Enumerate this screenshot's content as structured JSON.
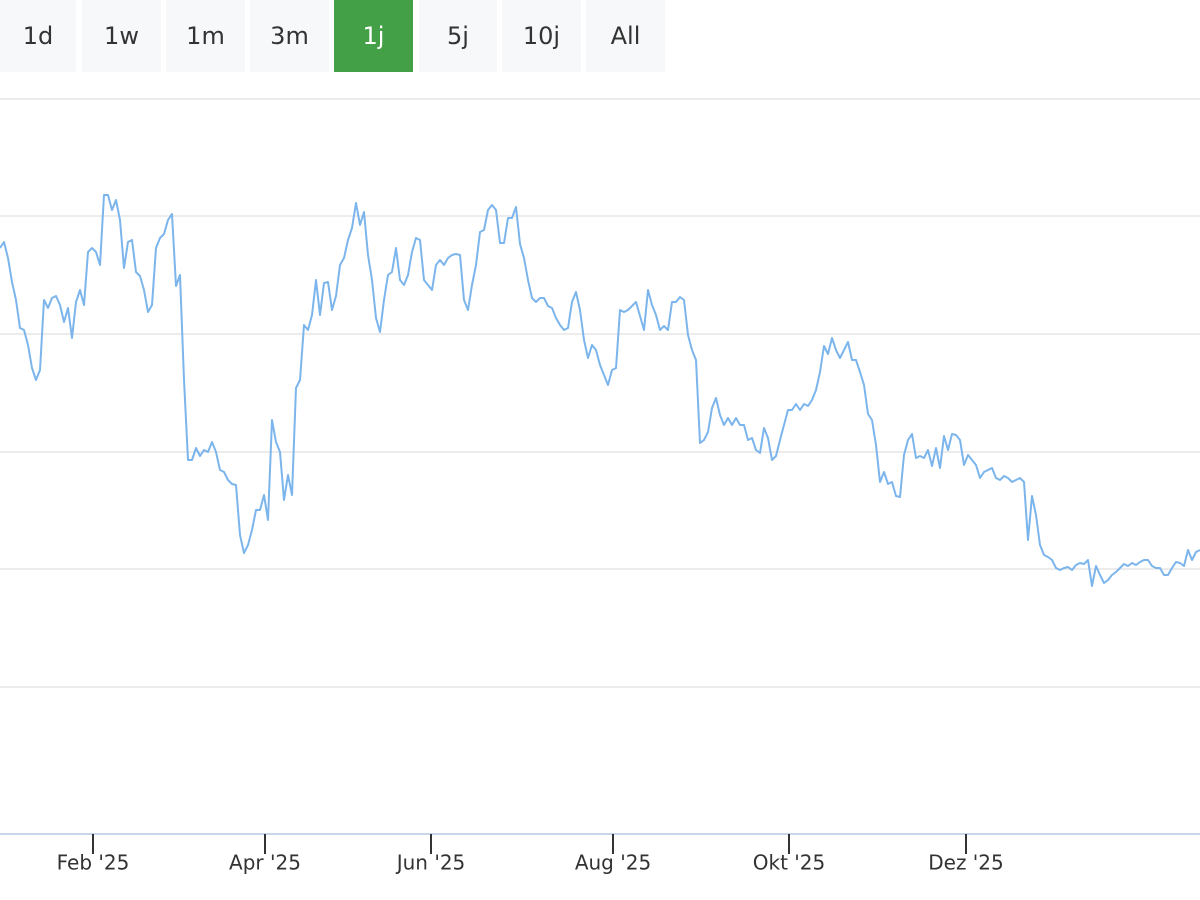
{
  "range_buttons": [
    {
      "label": "1d"
    },
    {
      "label": "1w"
    },
    {
      "label": "1m"
    },
    {
      "label": "3m"
    },
    {
      "label": "1j",
      "active": true
    },
    {
      "label": "5j"
    },
    {
      "label": "10j"
    },
    {
      "label": "All"
    }
  ],
  "chart_data": {
    "type": "line",
    "color": "#7cb5ec",
    "grid": true,
    "xlim": [
      0,
      300
    ],
    "xticks": [
      {
        "value": 23.25,
        "label": "Feb '25"
      },
      {
        "value": 66.25,
        "label": "Apr '25"
      },
      {
        "value": 107.75,
        "label": "Jun '25"
      },
      {
        "value": 153.25,
        "label": "Aug '25"
      },
      {
        "value": 197.25,
        "label": "Okt '25"
      },
      {
        "value": 241.5,
        "label": "Dez '25"
      }
    ],
    "ylim": [
      0,
      735
    ],
    "yticks": [
      147,
      265,
      382,
      500,
      618,
      735
    ],
    "values": [
      586,
      592,
      576,
      552,
      534,
      506,
      504,
      489,
      466,
      454,
      464,
      534,
      526,
      536,
      538,
      529,
      512,
      526,
      496,
      532,
      544,
      529,
      582,
      586,
      582,
      569,
      639,
      639,
      624,
      634,
      614,
      566,
      592,
      594,
      562,
      558,
      544,
      522,
      529,
      586,
      596,
      600,
      614,
      620,
      548,
      559,
      454,
      374,
      374,
      386,
      378,
      384,
      382,
      392,
      382,
      364,
      362,
      354,
      350,
      349,
      299,
      281,
      289,
      304,
      324,
      324,
      339,
      314,
      414,
      392,
      382,
      334,
      359,
      339,
      446,
      454,
      509,
      504,
      519,
      554,
      519,
      551,
      552,
      524,
      538,
      569,
      576,
      594,
      606,
      631,
      609,
      622,
      579,
      554,
      516,
      502,
      534,
      559,
      562,
      586,
      554,
      549,
      559,
      582,
      596,
      594,
      554,
      549,
      544,
      569,
      574,
      569,
      576,
      579,
      580,
      579,
      534,
      524,
      549,
      569,
      602,
      604,
      624,
      629,
      624,
      591,
      591,
      616,
      616,
      627,
      590,
      576,
      554,
      536,
      532,
      536,
      536,
      528,
      526,
      516,
      509,
      504,
      506,
      532,
      542,
      524,
      494,
      476,
      489,
      484,
      469,
      459,
      449,
      464,
      466,
      524,
      522,
      524,
      528,
      532,
      518,
      504,
      544,
      529,
      519,
      504,
      508,
      504,
      532,
      532,
      537,
      534,
      499,
      484,
      474,
      391,
      394,
      402,
      426,
      436,
      419,
      409,
      416,
      409,
      416,
      409,
      409,
      394,
      396,
      384,
      381,
      406,
      396,
      374,
      378,
      394,
      409,
      424,
      424,
      430,
      424,
      430,
      428,
      434,
      444,
      462,
      488,
      480,
      496,
      484,
      476,
      484,
      492,
      474,
      474,
      462,
      449,
      420,
      414,
      389,
      352,
      362,
      350,
      352,
      338,
      337,
      379,
      394,
      400,
      376,
      378,
      376,
      384,
      368,
      386,
      366,
      398,
      384,
      400,
      399,
      394,
      369,
      379,
      374,
      369,
      356,
      362,
      364,
      366,
      356,
      354,
      358,
      356,
      352,
      354,
      356,
      352,
      294,
      338,
      319,
      289,
      279,
      277,
      274,
      266,
      264,
      266,
      267,
      264,
      269,
      271,
      270,
      274,
      248,
      268,
      259,
      251,
      254,
      259,
      262,
      266,
      270,
      268,
      271,
      269,
      272,
      274,
      274,
      268,
      266,
      266,
      259,
      259,
      266,
      272,
      271,
      268,
      284,
      274,
      282,
      284
    ]
  }
}
